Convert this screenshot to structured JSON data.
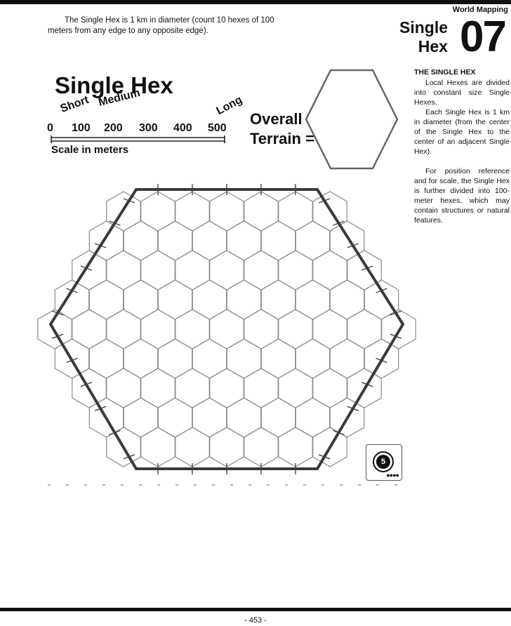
{
  "header": {
    "section": "World Mapping",
    "chapter_title_line1": "Single",
    "chapter_title_line2": "Hex",
    "chapter_number": "07"
  },
  "intro": {
    "text": "The Single Hex is 1 km in diameter (count 10 hexes of 100 meters from any edge to any opposite edge)."
  },
  "sidebar": {
    "heading": "THE SINGLE HEX",
    "paragraphs": [
      "Local Hexes are divided into constant size Single Hexes.",
      "Each Single Hex is 1 km in diameter (from the center of the Single Hex to the center of an adjacent Single Hex).",
      "For position reference and for scale, the Single Hex is further divided into 100-meter hexes, which may contain structures or natural features."
    ]
  },
  "map": {
    "title": "Single Hex",
    "ranges": {
      "short": "Short",
      "medium": "Medium",
      "long": "Long"
    },
    "scale_ticks": [
      "0",
      "100",
      "200",
      "300",
      "400",
      "500"
    ],
    "scale_label": "Scale in  meters",
    "overall_line1": "Overall",
    "overall_line2": "Terrain ="
  },
  "stamp": {
    "number": "5",
    "dots": "●●●●"
  },
  "footer": {
    "page": "- 453 -"
  }
}
